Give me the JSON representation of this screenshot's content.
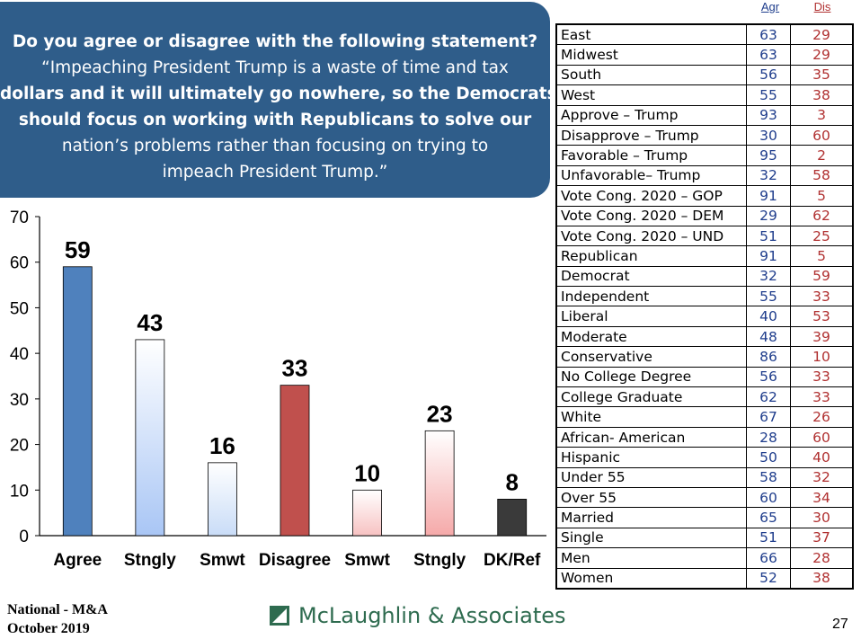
{
  "question": {
    "lines": [
      "Do you agree or disagree with the following statement?",
      "“Impeaching President Trump is a waste of time and tax",
      "dollars and it will ultimately go nowhere, so the Democrats",
      "should focus on working with Republicans to solve our",
      "nation’s problems rather than focusing on trying to",
      "impeach President Trump.”"
    ]
  },
  "chart_data": {
    "type": "bar",
    "title": "",
    "xlabel": "",
    "ylabel": "",
    "ylim": [
      0,
      70
    ],
    "yticks": [
      0,
      10,
      20,
      30,
      40,
      50,
      60,
      70
    ],
    "categories": [
      "Agree",
      "Stngly",
      "Smwt",
      "Disagree",
      "Smwt",
      "Stngly",
      "DK/Ref"
    ],
    "values": [
      59,
      43,
      16,
      33,
      10,
      23,
      8
    ],
    "colors": [
      "#4f81bd",
      "#a9c6f5",
      "#c9dcf7",
      "#c0504d",
      "#f7c2c2",
      "#f5a9a9",
      "#3a3a3a"
    ],
    "grid": false,
    "legend": "none"
  },
  "crosstab": {
    "headers": {
      "agr": "Agr",
      "dis": "Dis"
    },
    "rows": [
      {
        "label": "East",
        "agr": "63",
        "dis": "29"
      },
      {
        "label": "Midwest",
        "agr": "63",
        "dis": "29"
      },
      {
        "label": "South",
        "agr": "56",
        "dis": "35"
      },
      {
        "label": "West",
        "agr": "55",
        "dis": "38"
      },
      {
        "label": "Approve – Trump",
        "agr": "93",
        "dis": "3"
      },
      {
        "label": "Disapprove – Trump",
        "agr": "30",
        "dis": "60"
      },
      {
        "label": "Favorable – Trump",
        "agr": "95",
        "dis": "2"
      },
      {
        "label": "Unfavorable– Trump",
        "agr": "32",
        "dis": "58"
      },
      {
        "label": "Vote Cong. 2020 – GOP",
        "agr": "91",
        "dis": "5"
      },
      {
        "label": "Vote Cong. 2020 – DEM",
        "agr": "29",
        "dis": "62"
      },
      {
        "label": "Vote Cong. 2020 – UND",
        "agr": "51",
        "dis": "25"
      },
      {
        "label": "Republican",
        "agr": "91",
        "dis": "5"
      },
      {
        "label": "Democrat",
        "agr": "32",
        "dis": "59"
      },
      {
        "label": "Independent",
        "agr": "55",
        "dis": "33"
      },
      {
        "label": "Liberal",
        "agr": "40",
        "dis": "53"
      },
      {
        "label": "Moderate",
        "agr": "48",
        "dis": "39"
      },
      {
        "label": "Conservative",
        "agr": "86",
        "dis": "10"
      },
      {
        "label": "No College Degree",
        "agr": "56",
        "dis": "33"
      },
      {
        "label": "College Graduate",
        "agr": "62",
        "dis": "33"
      },
      {
        "label": "White",
        "agr": "67",
        "dis": "26"
      },
      {
        "label": "African- American",
        "agr": "28",
        "dis": "60"
      },
      {
        "label": "Hispanic",
        "agr": "50",
        "dis": "40"
      },
      {
        "label": "Under 55",
        "agr": "58",
        "dis": "32"
      },
      {
        "label": "Over 55",
        "agr": "60",
        "dis": "34"
      },
      {
        "label": "Married",
        "agr": "65",
        "dis": "30"
      },
      {
        "label": "Single",
        "agr": "51",
        "dis": "37"
      },
      {
        "label": "Men",
        "agr": "66",
        "dis": "28"
      },
      {
        "label": "Women",
        "agr": "52",
        "dis": "38"
      }
    ]
  },
  "footer": {
    "survey": "National - M&A",
    "date": "October 2019",
    "company": "McLaughlin & Associates",
    "page": "27"
  },
  "colors": {
    "question_bg": "#2f5d8a",
    "agr_text": "#1f3d8c",
    "dis_text": "#b03030",
    "logo_green": "#2e6b4f"
  }
}
